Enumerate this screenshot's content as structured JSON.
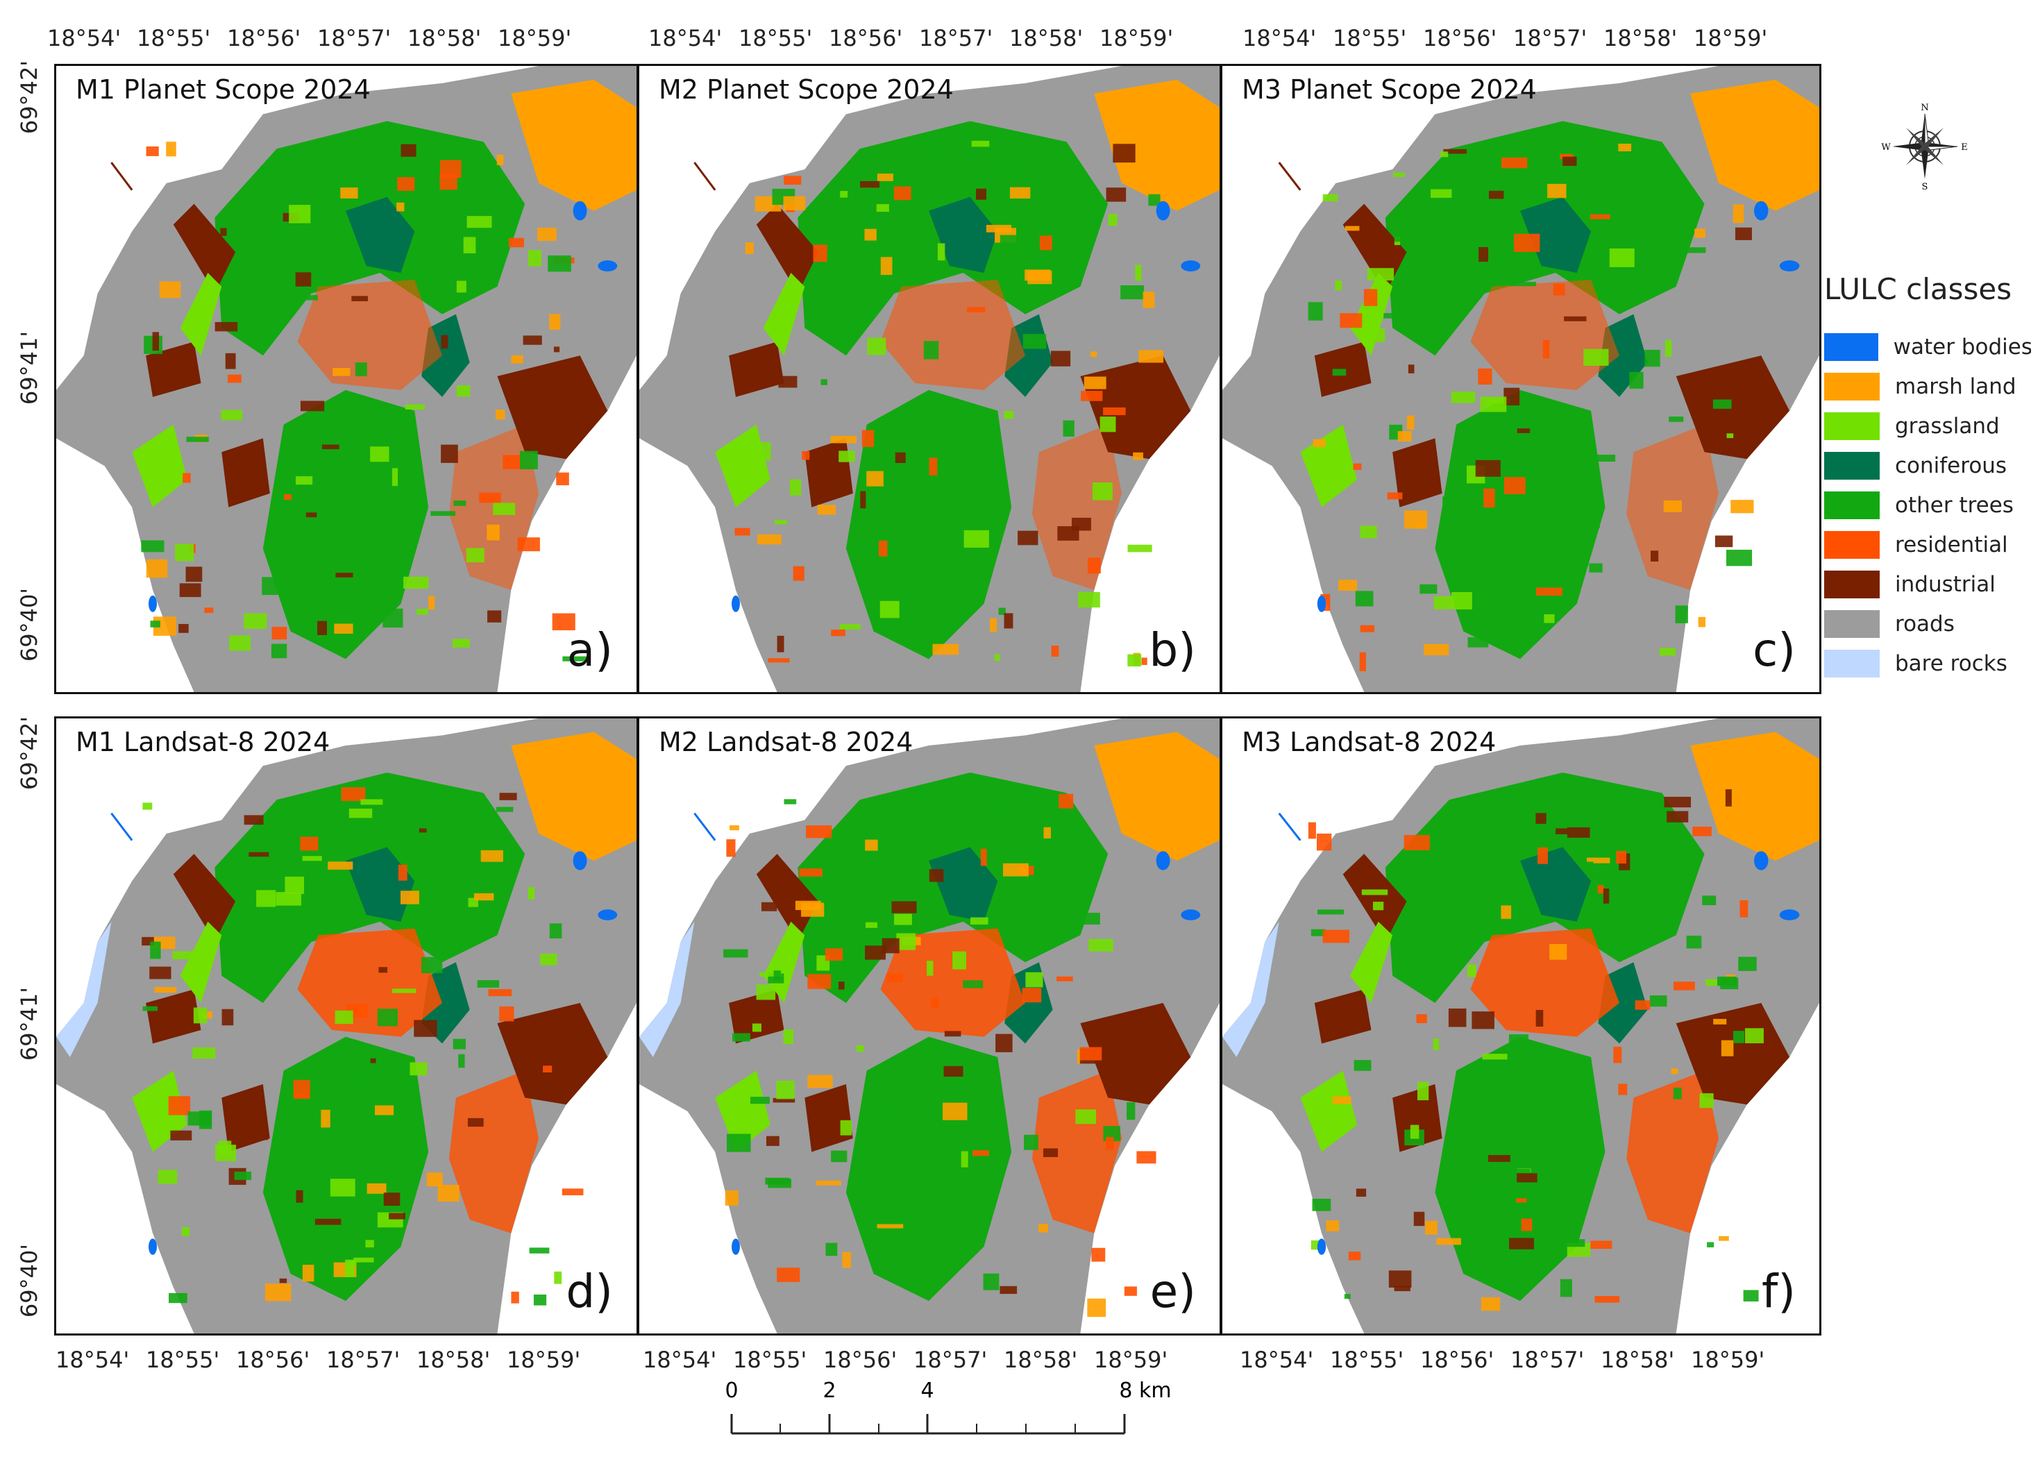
{
  "longitude_ticks": [
    "18°54'",
    "18°55'",
    "18°56'",
    "18°57'",
    "18°58'",
    "18°59'"
  ],
  "latitude_ticks": [
    "69°42'",
    "69°41'",
    "69°40'"
  ],
  "panels": [
    {
      "title": "M1 Planet Scope 2024",
      "letter": "a)"
    },
    {
      "title": "M2 Planet Scope 2024",
      "letter": "b)"
    },
    {
      "title": "M3 Planet Scope 2024",
      "letter": "c)"
    },
    {
      "title": "M1 Landsat-8 2024",
      "letter": "d)"
    },
    {
      "title": "M2 Landsat-8 2024",
      "letter": "e)"
    },
    {
      "title": "M3 Landsat-8 2024",
      "letter": "f)"
    }
  ],
  "legend": {
    "title": "LULC classes",
    "items": [
      {
        "label": "water bodies",
        "color": "#0a6ff0"
      },
      {
        "label": "marsh land",
        "color": "#ffa000"
      },
      {
        "label": "grassland",
        "color": "#72e000"
      },
      {
        "label": "coniferous",
        "color": "#00734c"
      },
      {
        "label": "other trees",
        "color": "#12a812"
      },
      {
        "label": "residential",
        "color": "#ff5000"
      },
      {
        "label": "industrial",
        "color": "#782000"
      },
      {
        "label": "roads",
        "color": "#9c9c9c"
      },
      {
        "label": "bare rocks",
        "color": "#bed8ff"
      }
    ]
  },
  "compass": {
    "n": "N",
    "s": "S",
    "e": "E",
    "w": "W"
  },
  "scale_bar": {
    "ticks": [
      "0",
      "2",
      "4",
      "8 km"
    ]
  }
}
